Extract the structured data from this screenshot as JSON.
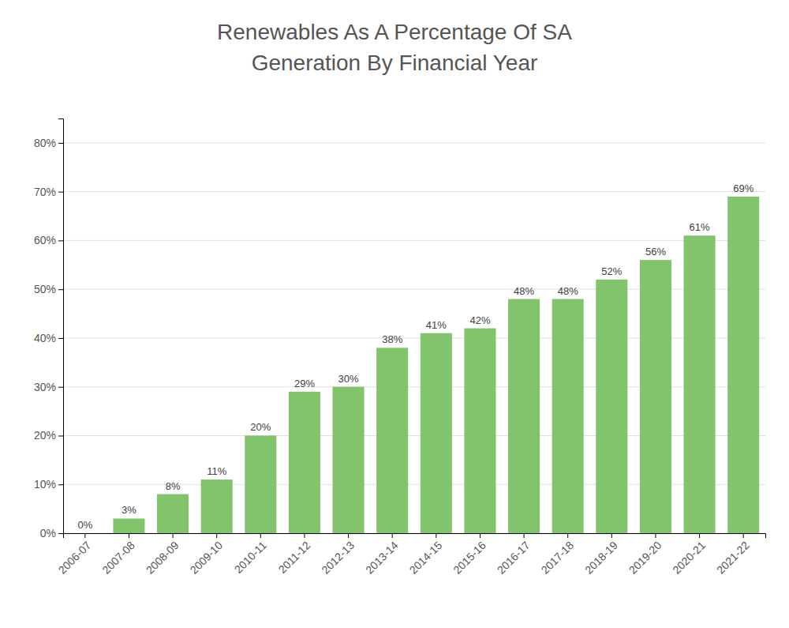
{
  "chart_data": {
    "type": "bar",
    "title": "Renewables As A Percentage Of SA\nGeneration By Financial Year",
    "categories": [
      "2006-07",
      "2007-08",
      "2008-09",
      "2009-10",
      "2010-11",
      "2011-12",
      "2012-13",
      "2013-14",
      "2014-15",
      "2015-16",
      "2016-17",
      "2017-18",
      "2018-19",
      "2019-20",
      "2020-21",
      "2021-22"
    ],
    "values": [
      0,
      3,
      8,
      11,
      20,
      29,
      30,
      38,
      41,
      42,
      48,
      48,
      52,
      56,
      61,
      69
    ],
    "value_labels": [
      "0%",
      "3%",
      "8%",
      "11%",
      "20%",
      "29%",
      "30%",
      "38%",
      "41%",
      "42%",
      "48%",
      "48%",
      "52%",
      "56%",
      "61%",
      "69%"
    ],
    "color": "#82C46C",
    "ylim": [
      0,
      85
    ],
    "yticks": [
      {
        "value": 0,
        "label": "0%"
      },
      {
        "value": 10,
        "label": "10%"
      },
      {
        "value": 20,
        "label": "20%"
      },
      {
        "value": 30,
        "label": "30%"
      },
      {
        "value": 40,
        "label": "40%"
      },
      {
        "value": 50,
        "label": "50%"
      },
      {
        "value": 60,
        "label": "60%"
      },
      {
        "value": 70,
        "label": "70%"
      },
      {
        "value": 80,
        "label": "80%"
      }
    ],
    "grid": true,
    "data_labels": true
  }
}
